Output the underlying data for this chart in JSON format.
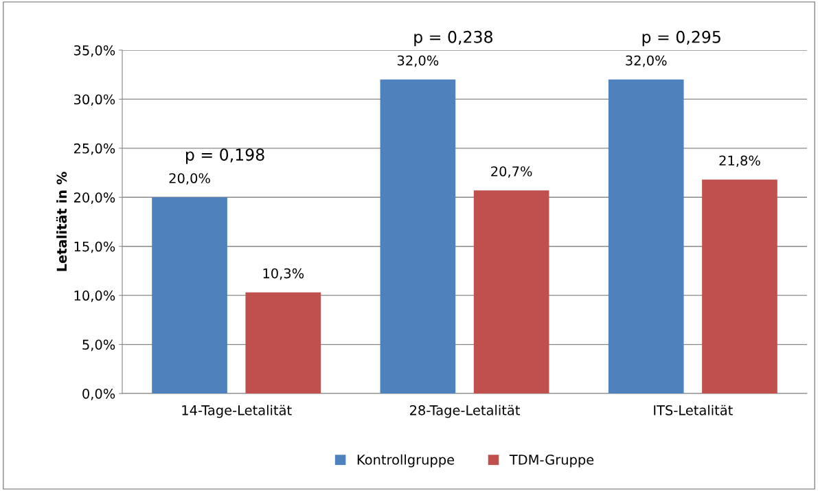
{
  "chart_data": {
    "type": "bar",
    "ylabel": "Letalität in %",
    "categories": [
      "14-Tage-Letalität",
      "28-Tage-Letalität",
      "ITS-Letalität"
    ],
    "series": [
      {
        "name": "Kontrollgruppe",
        "color": "#4f81bd",
        "values": [
          20.0,
          32.0,
          32.0
        ],
        "value_labels": [
          "20,0%",
          "32,0%",
          "32,0%"
        ]
      },
      {
        "name": "TDM-Gruppe",
        "color": "#c0504d",
        "values": [
          10.3,
          20.7,
          21.8
        ],
        "value_labels": [
          "10,3%",
          "20,7%",
          "21,8%"
        ]
      }
    ],
    "ylim": [
      0,
      35
    ],
    "yticks": [
      {
        "value": 0,
        "label": "0,0%"
      },
      {
        "value": 5,
        "label": "5,0%"
      },
      {
        "value": 10,
        "label": "10,0%"
      },
      {
        "value": 15,
        "label": "15,0%"
      },
      {
        "value": 20,
        "label": "20,0%"
      },
      {
        "value": 25,
        "label": "25,0%"
      },
      {
        "value": 30,
        "label": "30,0%"
      },
      {
        "value": 35,
        "label": "35,0%"
      }
    ],
    "annotations": [
      "p = 0,198",
      "p = 0,238",
      "p = 0,295"
    ],
    "grid": "y",
    "legend": "bottom"
  }
}
